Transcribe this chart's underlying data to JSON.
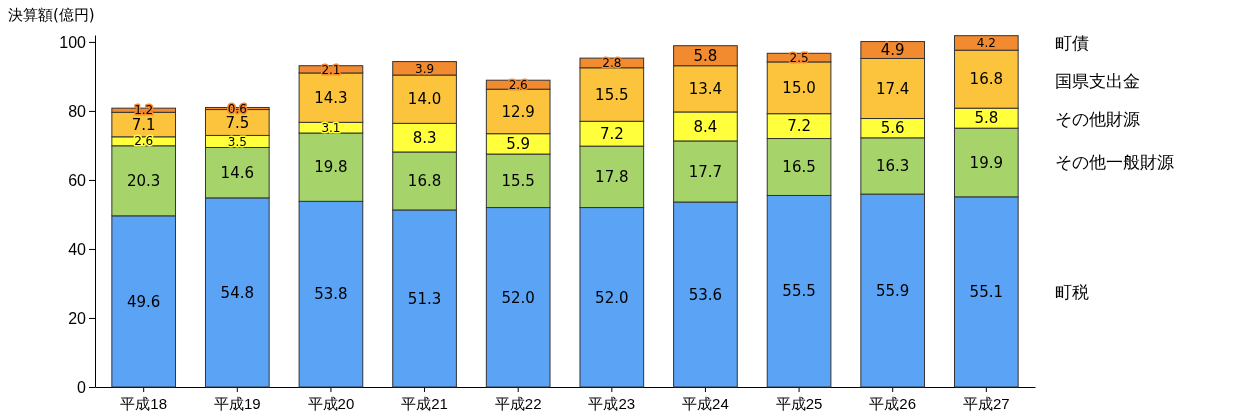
{
  "chart_data": {
    "type": "bar",
    "stacked": true,
    "ylabel": "決算額(億円)",
    "categories": [
      "平成18",
      "平成19",
      "平成20",
      "平成21",
      "平成22",
      "平成23",
      "平成24",
      "平成25",
      "平成26",
      "平成27"
    ],
    "ylim": [
      0,
      102
    ],
    "yticks": [
      0,
      20,
      40,
      60,
      80,
      100
    ],
    "grid": false,
    "series": [
      {
        "name": "町税",
        "color": "#5ba3f5",
        "values": [
          49.6,
          54.8,
          53.8,
          51.3,
          52.0,
          52.0,
          53.6,
          55.5,
          55.9,
          55.1
        ],
        "value_labels": [
          "49.6",
          "54.8",
          "53.8",
          "51.3",
          "52.0",
          "52.0",
          "53.6",
          "55.5",
          "55.9",
          "55.1"
        ]
      },
      {
        "name": "その他一般財源",
        "color": "#a6d46b",
        "values": [
          20.3,
          14.6,
          19.8,
          16.8,
          15.5,
          17.8,
          17.7,
          16.5,
          16.3,
          19.9
        ],
        "value_labels": [
          "20.3",
          "14.6",
          "19.8",
          "16.8",
          "15.5",
          "17.8",
          "17.7",
          "16.5",
          "16.3",
          "19.9"
        ]
      },
      {
        "name": "その他財源",
        "color": "#ffff3c",
        "values": [
          2.6,
          3.5,
          3.1,
          8.3,
          5.9,
          7.2,
          8.4,
          7.2,
          5.6,
          5.8
        ],
        "value_labels": [
          "2.6",
          "3.5",
          "3.1",
          "8.3",
          "5.9",
          "7.2",
          "8.4",
          "7.2",
          "5.6",
          "5.8"
        ]
      },
      {
        "name": "国県支出金",
        "color": "#fbc43c",
        "values": [
          7.1,
          7.5,
          14.3,
          14.0,
          12.9,
          15.5,
          13.4,
          15.0,
          17.4,
          16.8
        ],
        "value_labels": [
          "7.1",
          "7.5",
          "14.3",
          "14.0",
          "12.9",
          "15.5",
          "13.4",
          "15.0",
          "17.4",
          "16.8"
        ]
      },
      {
        "name": "町債",
        "color": "#f28a30",
        "values": [
          1.2,
          0.6,
          2.1,
          3.9,
          2.6,
          2.8,
          5.8,
          2.5,
          4.9,
          4.2
        ],
        "value_labels": [
          "1.2",
          "0.6",
          "2.1",
          "3.9",
          "2.6",
          "2.8",
          "5.8",
          "2.5",
          "4.9",
          "4.2"
        ]
      }
    ]
  }
}
